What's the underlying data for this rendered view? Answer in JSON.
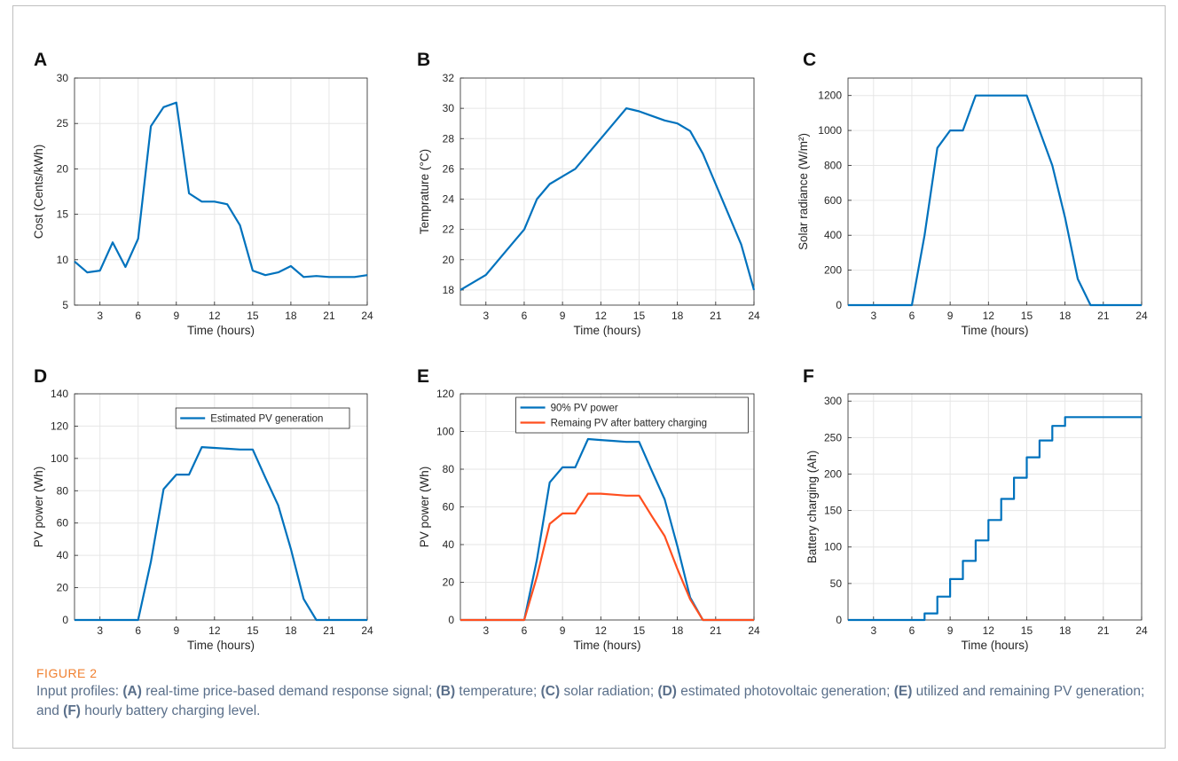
{
  "figure": {
    "label": "FIGURE 2",
    "caption_parts": [
      {
        "t": "Input profiles: ",
        "b": false
      },
      {
        "t": "(A)",
        "b": true
      },
      {
        "t": " real-time price-based demand response signal; ",
        "b": false
      },
      {
        "t": "(B)",
        "b": true
      },
      {
        "t": " temperature; ",
        "b": false
      },
      {
        "t": "(C)",
        "b": true
      },
      {
        "t": " solar radiation; ",
        "b": false
      },
      {
        "t": "(D)",
        "b": true
      },
      {
        "t": " estimated photovoltaic generation; ",
        "b": false
      },
      {
        "t": "(E)",
        "b": true
      },
      {
        "t": " utilized and remaining PV generation; and ",
        "b": false
      },
      {
        "t": "(F)",
        "b": true
      },
      {
        "t": " hourly battery charging level.",
        "b": false
      }
    ]
  },
  "colors": {
    "blue": "#0072BD",
    "orange": "#FF4F1F",
    "grid": "#e6e6e6",
    "axis": "#262626"
  },
  "chart_data": [
    {
      "panel": "A",
      "type": "line",
      "xlabel": "Time (hours)",
      "ylabel": "Cost (Cents/kWh)",
      "xlim": [
        1,
        24
      ],
      "ylim": [
        5,
        30
      ],
      "xticks": [
        3,
        6,
        9,
        12,
        15,
        18,
        21,
        24
      ],
      "yticks": [
        5,
        10,
        15,
        20,
        25,
        30
      ],
      "series": [
        {
          "color": "#0072BD",
          "x": [
            1,
            2,
            3,
            4,
            5,
            6,
            7,
            8,
            9,
            10,
            11,
            12,
            13,
            14,
            15,
            16,
            17,
            18,
            19,
            20,
            21,
            22,
            23,
            24
          ],
          "y": [
            9.8,
            8.6,
            8.8,
            11.9,
            9.2,
            12.3,
            24.7,
            26.8,
            27.3,
            17.3,
            16.4,
            16.4,
            16.1,
            13.8,
            8.8,
            8.3,
            8.6,
            9.3,
            8.1,
            8.2,
            8.1,
            8.1,
            8.1,
            8.3
          ]
        }
      ]
    },
    {
      "panel": "B",
      "type": "line",
      "xlabel": "Time (hours)",
      "ylabel": "Temprature (°C)",
      "xlim": [
        1,
        24
      ],
      "ylim": [
        17,
        32
      ],
      "xticks": [
        3,
        6,
        9,
        12,
        15,
        18,
        21,
        24
      ],
      "yticks": [
        18,
        20,
        22,
        24,
        26,
        28,
        30,
        32
      ],
      "series": [
        {
          "color": "#0072BD",
          "x": [
            1,
            2,
            3,
            4,
            5,
            6,
            7,
            8,
            9,
            10,
            11,
            12,
            13,
            14,
            15,
            16,
            17,
            18,
            19,
            20,
            21,
            22,
            23,
            24
          ],
          "y": [
            18,
            18.5,
            19,
            20,
            21,
            22,
            24,
            25,
            25.5,
            26,
            27,
            28,
            29,
            30,
            29.8,
            29.5,
            29.2,
            29,
            28.5,
            27,
            25,
            23,
            21,
            18
          ]
        }
      ]
    },
    {
      "panel": "C",
      "type": "line",
      "xlabel": "Time (hours)",
      "ylabel": "Solar radiance (W/m²)",
      "xlim": [
        1,
        24
      ],
      "ylim": [
        0,
        1300
      ],
      "xticks": [
        3,
        6,
        9,
        12,
        15,
        18,
        21,
        24
      ],
      "yticks": [
        0,
        200,
        400,
        600,
        800,
        1000,
        1200
      ],
      "series": [
        {
          "color": "#0072BD",
          "x": [
            1,
            2,
            3,
            4,
            5,
            6,
            7,
            8,
            9,
            10,
            11,
            12,
            13,
            14,
            15,
            16,
            17,
            18,
            19,
            20,
            21,
            22,
            23,
            24
          ],
          "y": [
            0,
            0,
            0,
            0,
            0,
            0,
            400,
            900,
            1000,
            1000,
            1200,
            1200,
            1200,
            1200,
            1200,
            1000,
            800,
            500,
            150,
            0,
            0,
            0,
            0,
            0
          ]
        }
      ]
    },
    {
      "panel": "D",
      "type": "line",
      "xlabel": "Time (hours)",
      "ylabel": "PV power (Wh)",
      "xlim": [
        1,
        24
      ],
      "ylim": [
        0,
        140
      ],
      "xticks": [
        3,
        6,
        9,
        12,
        15,
        18,
        21,
        24
      ],
      "yticks": [
        0,
        20,
        40,
        60,
        80,
        100,
        120,
        140
      ],
      "legend_position": "top-right",
      "series": [
        {
          "name": "Estimated PV generation",
          "color": "#0072BD",
          "x": [
            1,
            2,
            3,
            4,
            5,
            6,
            7,
            8,
            9,
            10,
            11,
            12,
            13,
            14,
            15,
            16,
            17,
            18,
            19,
            20,
            21,
            22,
            23,
            24
          ],
          "y": [
            0,
            0,
            0,
            0,
            0,
            0,
            36,
            81,
            90,
            90,
            107,
            106.5,
            106,
            105.5,
            105.5,
            88,
            71,
            44,
            13,
            0,
            0,
            0,
            0,
            0
          ]
        }
      ]
    },
    {
      "panel": "E",
      "type": "line",
      "xlabel": "Time (hours)",
      "ylabel": "PV power (Wh)",
      "xlim": [
        1,
        24
      ],
      "ylim": [
        0,
        120
      ],
      "xticks": [
        3,
        6,
        9,
        12,
        15,
        18,
        21,
        24
      ],
      "yticks": [
        0,
        20,
        40,
        60,
        80,
        100,
        120
      ],
      "legend_position": "top-center",
      "series": [
        {
          "name": "90% PV power",
          "color": "#0072BD",
          "x": [
            1,
            2,
            3,
            4,
            5,
            6,
            7,
            8,
            9,
            10,
            11,
            12,
            13,
            14,
            15,
            16,
            17,
            18,
            19,
            20,
            21,
            22,
            23,
            24
          ],
          "y": [
            0,
            0,
            0,
            0,
            0,
            0,
            32,
            73,
            81,
            81,
            96,
            95.5,
            95,
            94.5,
            94.5,
            79,
            64,
            39,
            12,
            0,
            0,
            0,
            0,
            0
          ]
        },
        {
          "name": "Remaing PV after battery charging",
          "color": "#FF4F1F",
          "x": [
            1,
            2,
            3,
            4,
            5,
            6,
            7,
            8,
            9,
            10,
            11,
            12,
            13,
            14,
            15,
            16,
            17,
            18,
            19,
            20,
            21,
            22,
            23,
            24
          ],
          "y": [
            0,
            0,
            0,
            0,
            0,
            0,
            23,
            51,
            56.5,
            56.5,
            67,
            67,
            66.5,
            66,
            66,
            55,
            44.5,
            27,
            11,
            0,
            0,
            0,
            0,
            0
          ]
        }
      ]
    },
    {
      "panel": "F",
      "type": "line",
      "step": true,
      "xlabel": "Time (hours)",
      "ylabel": "Battery charging (Ah)",
      "xlim": [
        1,
        24
      ],
      "ylim": [
        0,
        310
      ],
      "xticks": [
        3,
        6,
        9,
        12,
        15,
        18,
        21,
        24
      ],
      "yticks": [
        0,
        50,
        100,
        150,
        200,
        250,
        300
      ],
      "series": [
        {
          "color": "#0072BD",
          "x": [
            1,
            2,
            3,
            4,
            5,
            6,
            7,
            8,
            9,
            10,
            11,
            12,
            13,
            14,
            15,
            16,
            17,
            18,
            19,
            20,
            21,
            22,
            23,
            24
          ],
          "y": [
            0,
            0,
            0,
            0,
            0,
            0,
            9,
            32,
            56,
            81,
            109,
            137,
            166,
            195,
            223,
            246,
            266,
            278,
            278,
            278,
            278,
            278,
            278,
            278
          ]
        }
      ]
    }
  ]
}
